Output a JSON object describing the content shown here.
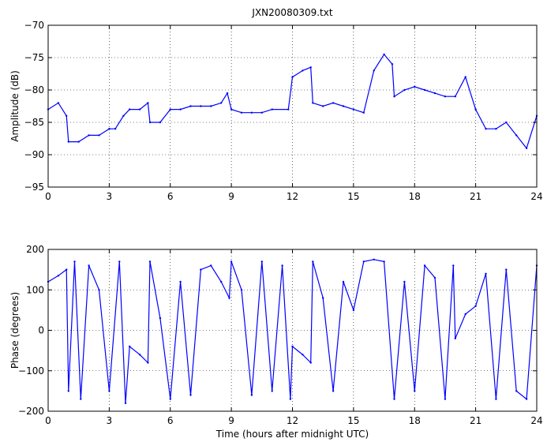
{
  "figure": {
    "title": "JXN20080309.txt"
  },
  "chart_data": [
    {
      "type": "line",
      "title": "JXN20080309.txt",
      "xlabel": "",
      "ylabel": "Amplitude (dB)",
      "xlim": [
        0,
        24
      ],
      "ylim": [
        -95,
        -70
      ],
      "xticks": [
        0,
        3,
        6,
        9,
        12,
        15,
        18,
        21,
        24
      ],
      "yticks": [
        -95,
        -90,
        -85,
        -80,
        -75,
        -70
      ],
      "grid": true,
      "series": [
        {
          "color": "#0000ff",
          "x": [
            0,
            0.5,
            0.9,
            1.0,
            1.5,
            2.0,
            2.5,
            3.0,
            3.3,
            3.7,
            4.0,
            4.5,
            4.9,
            5.0,
            5.5,
            6.0,
            6.5,
            7.0,
            7.5,
            8.0,
            8.5,
            8.8,
            9.0,
            9.5,
            10.0,
            10.5,
            11.0,
            11.8,
            12.0,
            12.5,
            12.9,
            13.0,
            13.5,
            14.0,
            14.5,
            15.0,
            15.5,
            16.0,
            16.5,
            16.9,
            17.0,
            17.5,
            18.0,
            18.5,
            19.0,
            19.5,
            20.0,
            20.5,
            21.0,
            21.5,
            22.0,
            22.5,
            23.0,
            23.5,
            24.0
          ],
          "y": [
            -83,
            -82,
            -84,
            -88,
            -88,
            -87,
            -87,
            -86,
            -86,
            -84,
            -83,
            -83,
            -82,
            -85,
            -85,
            -83,
            -83,
            -82.5,
            -82.5,
            -82.5,
            -82,
            -80.5,
            -83,
            -83.5,
            -83.5,
            -83.5,
            -83,
            -83,
            -78,
            -77,
            -76.5,
            -82,
            -82.5,
            -82,
            -82.5,
            -83,
            -83.5,
            -77,
            -74.5,
            -76,
            -81,
            -80,
            -79.5,
            -80,
            -80.5,
            -81,
            -81,
            -78,
            -83,
            -86,
            -86,
            -85,
            -87,
            -89,
            -84
          ]
        }
      ]
    },
    {
      "type": "scatter",
      "title": "",
      "xlabel": "Time (hours after midnight UTC)",
      "ylabel": "Phase (degrees)",
      "xlim": [
        0,
        24
      ],
      "ylim": [
        -200,
        200
      ],
      "xticks": [
        0,
        3,
        6,
        9,
        12,
        15,
        18,
        21,
        24
      ],
      "yticks": [
        -200,
        -100,
        0,
        100,
        200
      ],
      "grid": true,
      "series": [
        {
          "color": "#0000ff",
          "x": [
            0,
            0.5,
            0.9,
            1.0,
            1.3,
            1.6,
            2.0,
            2.5,
            3.0,
            3.5,
            3.8,
            4.0,
            4.5,
            4.9,
            5.0,
            5.5,
            6.0,
            6.5,
            7.0,
            7.5,
            8.0,
            8.5,
            8.9,
            9.0,
            9.5,
            10.0,
            10.5,
            11.0,
            11.5,
            11.9,
            12.0,
            12.5,
            12.9,
            13.0,
            13.5,
            14.0,
            14.5,
            15.0,
            15.5,
            16.0,
            16.5,
            17.0,
            17.5,
            18.0,
            18.5,
            19.0,
            19.5,
            19.9,
            20.0,
            20.5,
            21.0,
            21.5,
            22.0,
            22.5,
            23.0,
            23.5,
            24.0
          ],
          "y": [
            120,
            135,
            150,
            -150,
            170,
            -170,
            160,
            100,
            -150,
            170,
            -180,
            -40,
            -60,
            -80,
            170,
            30,
            -170,
            120,
            -160,
            150,
            160,
            120,
            80,
            170,
            100,
            -160,
            170,
            -150,
            160,
            -170,
            -40,
            -60,
            -80,
            170,
            80,
            -150,
            120,
            50,
            170,
            175,
            170,
            -170,
            120,
            -150,
            160,
            130,
            -170,
            160,
            -20,
            40,
            60,
            140,
            -170,
            150,
            -150,
            -170,
            160
          ]
        }
      ]
    }
  ]
}
